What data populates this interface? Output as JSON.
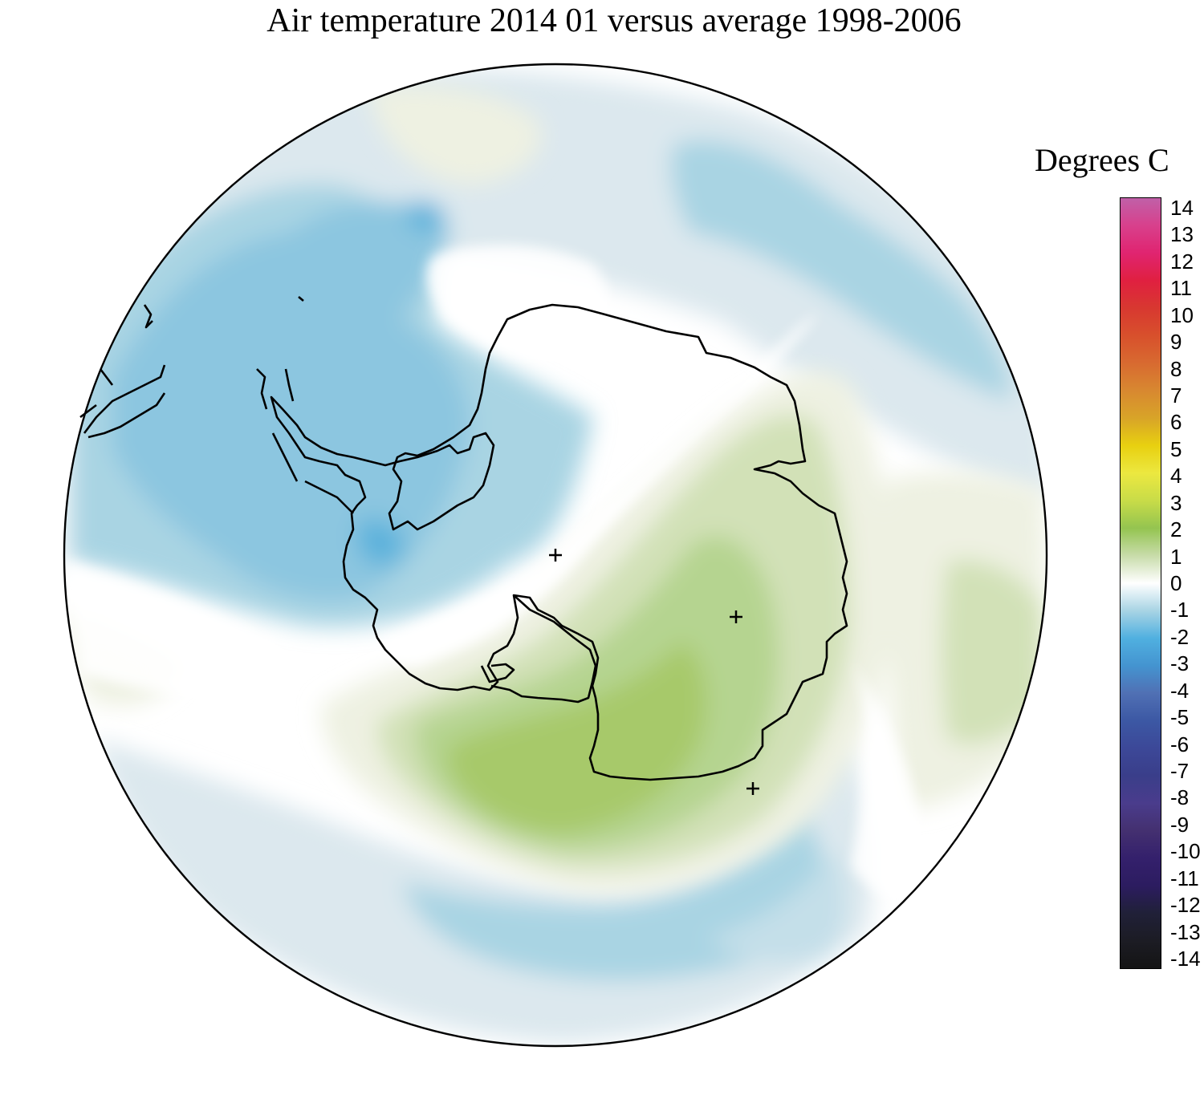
{
  "title": "Air temperature 2014 01 versus average 1998-2006",
  "legend": {
    "title": "Degrees C",
    "labels": [
      "14",
      "13",
      "12",
      "11",
      "10",
      "9",
      "8",
      "7",
      "6",
      "5",
      "4",
      "3",
      "2",
      "1",
      "0",
      "-1",
      "-2",
      "-3",
      "-4",
      "-5",
      "-6",
      "-7",
      "-8",
      "-9",
      "-10",
      "-11",
      "-12",
      "-13",
      "-14"
    ],
    "colors": {
      "14": "#c060a8",
      "13": "#d8408c",
      "12": "#e02470",
      "11": "#e02040",
      "10": "#d83830",
      "9": "#d8502c",
      "8": "#d86a30",
      "7": "#d88830",
      "6": "#d8a428",
      "5": "#e8d010",
      "4": "#ece840",
      "3": "#c8dc48",
      "2": "#94c450",
      "1": "#c8dcaa",
      "0": "#ffffff",
      "-1": "#a8d4e4",
      "-2": "#50b0e0",
      "-3": "#4494d0",
      "-4": "#5070b4",
      "-5": "#3c58a4",
      "-6": "#3c4898",
      "-7": "#3a3e8a",
      "-8": "#4a3c8c",
      "-9": "#443070",
      "-10": "#34206c",
      "-11": "#2c1c60",
      "-12": "#202038",
      "-13": "#1c1c24",
      "-14": "#141414"
    }
  },
  "map": {
    "projection": "south polar stereographic",
    "anomaly_colors": {
      "cold_light": "#dce8ee",
      "cold_mid": "#c4dfe9",
      "cold": "#a9d4e3",
      "cold_strong": "#8cc6e0",
      "cold_peak": "#5db2dc",
      "warm_light": "#eef1e2",
      "warm_mid": "#d2e1b7",
      "warm": "#b5d490",
      "warm_strong": "#a7c96a"
    },
    "coastline_color": "#000000"
  }
}
